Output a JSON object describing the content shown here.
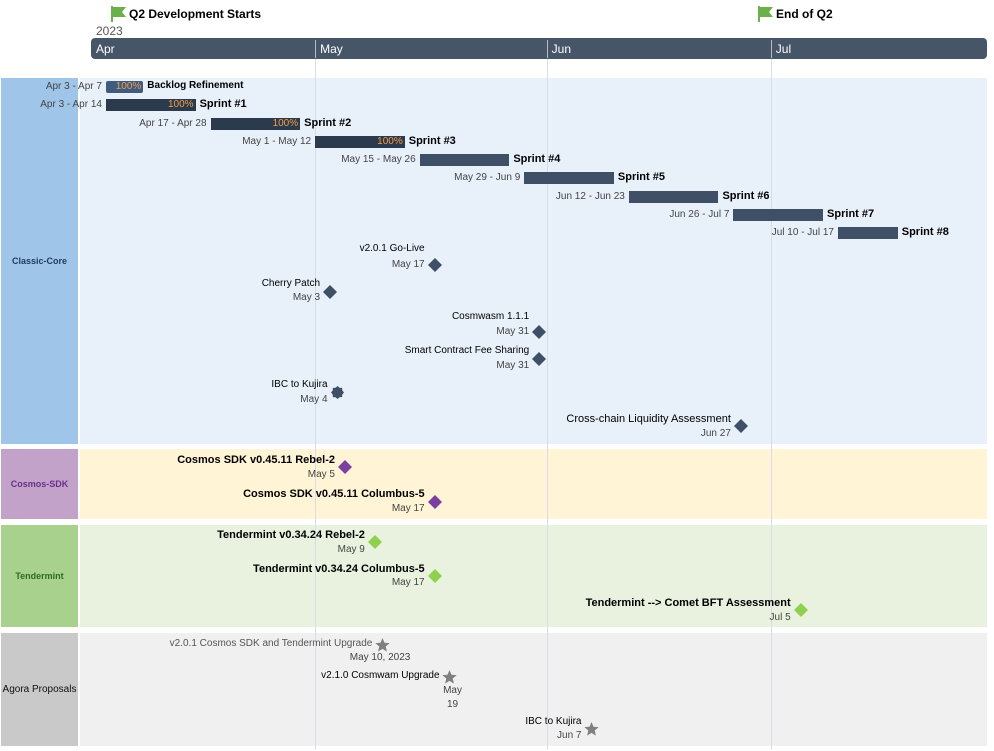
{
  "chart_data": {
    "type": "timeline",
    "year": "2023",
    "months": [
      "Apr",
      "May",
      "Jun",
      "Jul"
    ],
    "flags": [
      {
        "label": "Q2 Development Starts",
        "date": "2023-04-01",
        "color": "#6ab04c"
      },
      {
        "label": "End of Q2",
        "date": "2023-06-30",
        "color": "#6ab04c"
      }
    ],
    "lanes": [
      {
        "name": "Classic-Core",
        "color": "#9fc5e8",
        "bg": "#e8f0fa",
        "text_color": "#1f3a5f",
        "tasks": [
          {
            "name": "Backlog Refinement",
            "range": "Apr 3 - Apr 7",
            "start": "2023-04-03",
            "end": "2023-04-07",
            "progress": "100%"
          },
          {
            "name": "Sprint #1",
            "range": "Apr 3 - Apr 14",
            "start": "2023-04-03",
            "end": "2023-04-14",
            "progress": "100%"
          },
          {
            "name": "Sprint #2",
            "range": "Apr 17 - Apr 28",
            "start": "2023-04-17",
            "end": "2023-04-28",
            "progress": "100%"
          },
          {
            "name": "Sprint #3",
            "range": "May 1 - May 12",
            "start": "2023-05-01",
            "end": "2023-05-12",
            "progress": "100%"
          },
          {
            "name": "Sprint #4",
            "range": "May 15 - May 26",
            "start": "2023-05-15",
            "end": "2023-05-26",
            "progress": ""
          },
          {
            "name": "Sprint #5",
            "range": "May 29 - Jun 9",
            "start": "2023-05-29",
            "end": "2023-06-09",
            "progress": ""
          },
          {
            "name": "Sprint #6",
            "range": "Jun 12 - Jun 23",
            "start": "2023-06-12",
            "end": "2023-06-23",
            "progress": ""
          },
          {
            "name": "Sprint #7",
            "range": "Jun 26 - Jul 7",
            "start": "2023-06-26",
            "end": "2023-07-07",
            "progress": ""
          },
          {
            "name": "Sprint #8",
            "range": "Jul 10 - Jul 17",
            "start": "2023-07-10",
            "end": "2023-07-17",
            "progress": ""
          }
        ],
        "milestones": [
          {
            "name": "v2.0.1  Go-Live",
            "date_label": "May 17",
            "date": "2023-05-17",
            "shape": "diamond",
            "color": "#3f4f66"
          },
          {
            "name": "Cherry Patch",
            "date_label": "May 3",
            "date": "2023-05-03",
            "shape": "diamond",
            "color": "#3f4f66"
          },
          {
            "name": "Cosmwasm 1.1.1",
            "date_label": "May 31",
            "date": "2023-05-31",
            "shape": "diamond",
            "color": "#3f4f66"
          },
          {
            "name": "Smart Contract Fee Sharing",
            "date_label": "May 31",
            "date": "2023-05-31",
            "shape": "diamond",
            "color": "#3f4f66"
          },
          {
            "name": "IBC to Kujira",
            "date_label": "May 4",
            "date": "2023-05-04",
            "shape": "seal",
            "color": "#3f4f66"
          },
          {
            "name": "Cross-chain Liquidity Assessment",
            "date_label": "Jun 27",
            "date": "2023-06-27",
            "shape": "diamond",
            "color": "#3f4f66"
          }
        ]
      },
      {
        "name": "Cosmos-SDK",
        "color": "#c3a2c9",
        "bg": "#fff4d6",
        "text_color": "#6b2f8a",
        "tasks": [],
        "milestones": [
          {
            "name": "Cosmos SDK v0.45.11 Rebel-2",
            "date_label": "May 5",
            "date": "2023-05-05",
            "shape": "diamond",
            "color": "#7b3fa0"
          },
          {
            "name": "Cosmos SDK v0.45.11 Columbus-5",
            "date_label": "May 17",
            "date": "2023-05-17",
            "shape": "diamond",
            "color": "#7b3fa0"
          }
        ]
      },
      {
        "name": "Tendermint",
        "color": "#a9d18e",
        "bg": "#e9f2df",
        "text_color": "#2e6b1a",
        "tasks": [],
        "milestones": [
          {
            "name": "Tendermint v0.34.24 Rebel-2",
            "date_label": "May 9",
            "date": "2023-05-09",
            "shape": "diamond",
            "color": "#8fd14f"
          },
          {
            "name": "Tendermint v0.34.24 Columbus-5",
            "date_label": "May 17",
            "date": "2023-05-17",
            "shape": "diamond",
            "color": "#8fd14f"
          },
          {
            "name": "Tendermint --> Comet BFT Assessment",
            "date_label": "Jul 5",
            "date": "2023-07-05",
            "shape": "diamond",
            "color": "#8fd14f"
          }
        ]
      },
      {
        "name": "Agora Proposals",
        "color": "#c9c9c9",
        "bg": "#f0f0f0",
        "text_color": "#111111",
        "tasks": [],
        "milestones": [
          {
            "name": "v2.0.1 Cosmos SDK and Tendermint Upgrade",
            "date_label": "May 10, 2023",
            "date": "2023-05-10",
            "shape": "star",
            "color": "#808080"
          },
          {
            "name": "v2.1.0 Cosmwam Upgrade",
            "date_label": "May 19",
            "date": "2023-05-19",
            "shape": "star",
            "color": "#808080"
          },
          {
            "name": "IBC to Kujira",
            "date_label": "Jun 7",
            "date": "2023-06-07",
            "shape": "star",
            "color": "#808080"
          }
        ]
      }
    ]
  }
}
